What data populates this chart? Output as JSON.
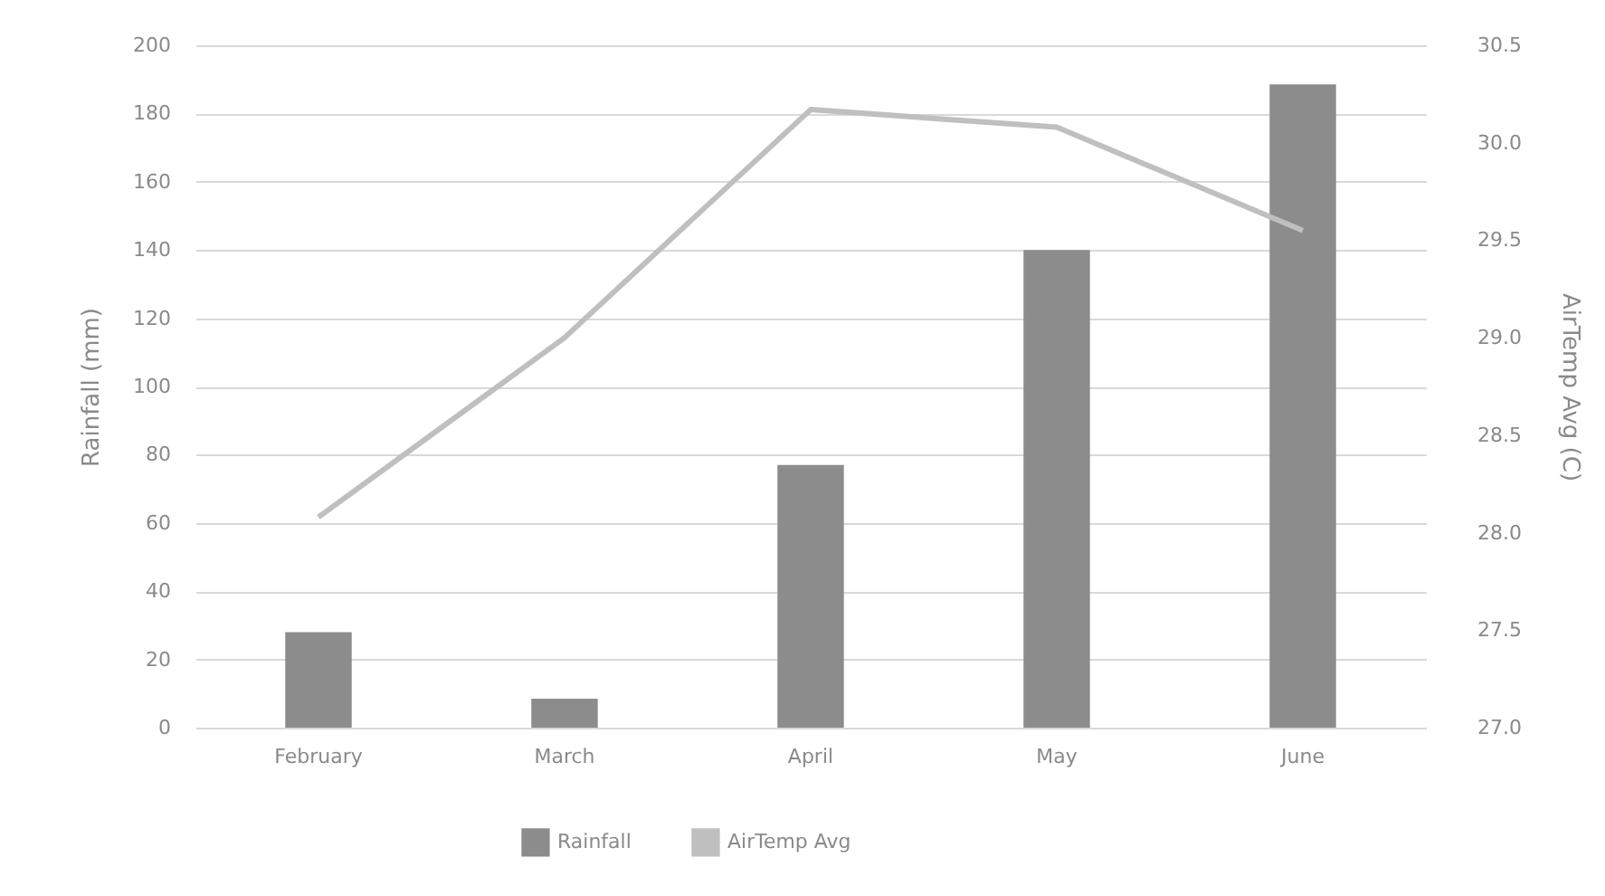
{
  "chart_data": {
    "type": "bar",
    "categories": [
      "February",
      "March",
      "April",
      "May",
      "June"
    ],
    "series": [
      {
        "name": "Rainfall",
        "color": "#8c8c8c",
        "values": [
          28,
          8.5,
          77,
          140,
          188.5
        ]
      },
      {
        "name": "AirTemp Avg",
        "type": "line",
        "axis": "y2",
        "color": "#bfbfbf",
        "values": [
          28.08,
          29.0,
          30.17,
          30.08,
          29.55
        ]
      }
    ],
    "ylabel": "Rainfall (mm)",
    "y2label": "AirTemp Avg (C)",
    "ylim": [
      0,
      200
    ],
    "yticks": [
      0,
      20,
      40,
      60,
      80,
      100,
      120,
      140,
      160,
      180,
      200
    ],
    "y2lim": [
      27,
      30.5
    ],
    "y2ticks": [
      {
        "value": 27,
        "label": "27.0"
      },
      {
        "value": 27.5,
        "label": "27.5"
      },
      {
        "value": 28,
        "label": "28.0"
      },
      {
        "value": 28.5,
        "label": "28.5"
      },
      {
        "value": 29,
        "label": "29.0"
      },
      {
        "value": 29.5,
        "label": "29.5"
      },
      {
        "value": 30,
        "label": "30.0"
      },
      {
        "value": 30.5,
        "label": "30.5"
      }
    ],
    "grid": "y",
    "legend": "bottom",
    "marker": "none",
    "line_style": "solid"
  }
}
